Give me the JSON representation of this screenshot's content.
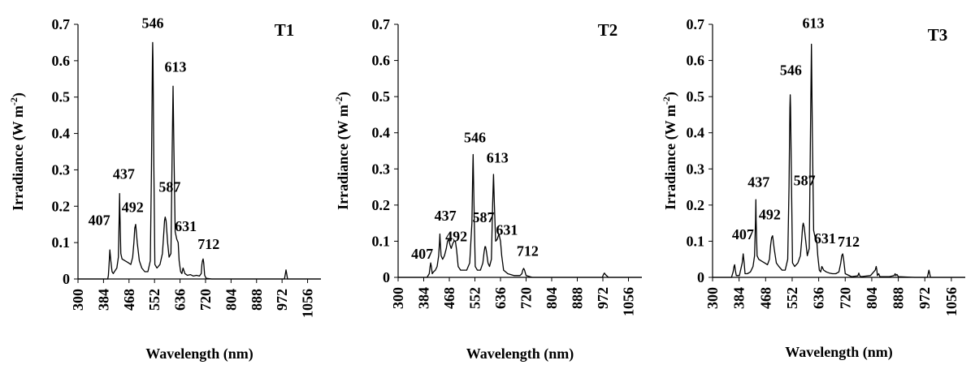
{
  "chart_data": [
    {
      "type": "line",
      "panel_label": "T1",
      "xlabel": "Wavelength (nm)",
      "ylabel": "Irradiance (W m-2)",
      "ylabel_main": "Irradiance (W m",
      "ylabel_sup": "-2",
      "ylabel_end": ")",
      "xlim": [
        300,
        1100
      ],
      "ylim": [
        0,
        0.7
      ],
      "x_ticks": [
        "300",
        "384",
        "468",
        "552",
        "636",
        "720",
        "804",
        "888",
        "972",
        "1056"
      ],
      "y_ticks": [
        "0",
        "0.1",
        "0.2",
        "0.3",
        "0.4",
        "0.5",
        "0.6",
        "0.7"
      ],
      "series": [
        {
          "name": "T1",
          "x": [
            300,
            340,
            365,
            378,
            388,
            398,
            400,
            403,
            405,
            408,
            412,
            416,
            420,
            428,
            433,
            436,
            437,
            438,
            441,
            445,
            455,
            465,
            474,
            480,
            484,
            487,
            490,
            495,
            502,
            510,
            520,
            530,
            538,
            542,
            545,
            546,
            547,
            550,
            553,
            560,
            570,
            578,
            582,
            585,
            587,
            590,
            595,
            600,
            606,
            610,
            613,
            616,
            620,
            625,
            630,
            633,
            638,
            642,
            646,
            652,
            660,
            670,
            680,
            690,
            700,
            706,
            708,
            710,
            712,
            714,
            717,
            722,
            740,
            760,
            790,
            820,
            860,
            900,
            940,
            970,
            980,
            983,
            985,
            987,
            990,
            1010,
            1040,
            1060,
            1100
          ],
          "y": [
            0,
            0,
            0,
            0,
            0,
            0,
            0.01,
            0.05,
            0.08,
            0.05,
            0.02,
            0.015,
            0.02,
            0.03,
            0.06,
            0.18,
            0.235,
            0.18,
            0.07,
            0.055,
            0.05,
            0.045,
            0.04,
            0.06,
            0.1,
            0.14,
            0.15,
            0.1,
            0.05,
            0.03,
            0.02,
            0.02,
            0.05,
            0.3,
            0.6,
            0.65,
            0.6,
            0.3,
            0.04,
            0.03,
            0.04,
            0.07,
            0.12,
            0.16,
            0.17,
            0.16,
            0.1,
            0.06,
            0.07,
            0.35,
            0.53,
            0.35,
            0.13,
            0.11,
            0.1,
            0.05,
            0.02,
            0.015,
            0.03,
            0.015,
            0.01,
            0.012,
            0.008,
            0.01,
            0.008,
            0.015,
            0.04,
            0.05,
            0.055,
            0.045,
            0.01,
            0.002,
            0,
            0,
            0,
            0,
            0,
            0,
            0,
            0,
            0,
            0.015,
            0.025,
            0.015,
            0,
            0,
            0,
            0,
            0
          ]
        }
      ],
      "annotations": [
        {
          "text": "546",
          "x": 546,
          "y": 0.69
        },
        {
          "text": "613",
          "x": 621,
          "y": 0.57
        },
        {
          "text": "587",
          "x": 602,
          "y": 0.24
        },
        {
          "text": "437",
          "x": 451,
          "y": 0.275
        },
        {
          "text": "492",
          "x": 480,
          "y": 0.184
        },
        {
          "text": "407",
          "x": 370,
          "y": 0.148
        },
        {
          "text": "631",
          "x": 655,
          "y": 0.132
        },
        {
          "text": "712",
          "x": 730,
          "y": 0.082
        }
      ]
    },
    {
      "type": "line",
      "panel_label": "T2",
      "xlabel": "Wavelength (nm)",
      "ylabel": "Irradiance (W m-2)",
      "ylabel_main": "Irradiance (W m",
      "ylabel_sup": "-2",
      "ylabel_end": ")",
      "xlim": [
        300,
        1100
      ],
      "ylim": [
        0,
        0.7
      ],
      "x_ticks": [
        "300",
        "384",
        "468",
        "552",
        "636",
        "720",
        "804",
        "888",
        "972",
        "1056"
      ],
      "y_ticks": [
        "0",
        "0.1",
        "0.2",
        "0.3",
        "0.4",
        "0.5",
        "0.6",
        "0.7"
      ],
      "series": [
        {
          "name": "T2",
          "x": [
            300,
            340,
            380,
            395,
            402,
            405,
            407,
            409,
            412,
            416,
            422,
            428,
            433,
            436,
            437,
            438,
            441,
            446,
            452,
            458,
            462,
            466,
            470,
            474,
            480,
            484,
            488,
            492,
            497,
            505,
            515,
            525,
            535,
            542,
            545,
            546,
            547,
            550,
            553,
            560,
            570,
            578,
            582,
            585,
            587,
            590,
            595,
            600,
            606,
            610,
            613,
            616,
            620,
            625,
            631,
            636,
            640,
            646,
            660,
            680,
            700,
            706,
            709,
            712,
            715,
            720,
            740,
            800,
            900,
            960,
            970,
            974,
            977,
            980,
            990,
            1040,
            1100
          ],
          "y": [
            0,
            0,
            0,
            0,
            0.01,
            0.03,
            0.04,
            0.03,
            0.01,
            0.015,
            0.02,
            0.03,
            0.06,
            0.1,
            0.12,
            0.1,
            0.06,
            0.05,
            0.06,
            0.08,
            0.1,
            0.105,
            0.09,
            0.08,
            0.095,
            0.1,
            0.1,
            0.075,
            0.03,
            0.02,
            0.02,
            0.02,
            0.04,
            0.15,
            0.3,
            0.34,
            0.3,
            0.15,
            0.03,
            0.02,
            0.02,
            0.04,
            0.07,
            0.085,
            0.085,
            0.07,
            0.04,
            0.03,
            0.05,
            0.2,
            0.285,
            0.2,
            0.1,
            0.105,
            0.12,
            0.1,
            0.06,
            0.02,
            0.01,
            0.005,
            0.005,
            0.01,
            0.02,
            0.025,
            0.02,
            0.005,
            0,
            0,
            0,
            0,
            0,
            0.008,
            0.012,
            0.008,
            0,
            0,
            0
          ]
        }
      ],
      "annotations": [
        {
          "text": "546",
          "x": 552,
          "y": 0.373
        },
        {
          "text": "613",
          "x": 626,
          "y": 0.317
        },
        {
          "text": "587",
          "x": 580,
          "y": 0.153
        },
        {
          "text": "437",
          "x": 455,
          "y": 0.157
        },
        {
          "text": "492",
          "x": 491,
          "y": 0.1
        },
        {
          "text": "407",
          "x": 379,
          "y": 0.052
        },
        {
          "text": "631",
          "x": 657,
          "y": 0.118
        },
        {
          "text": "712",
          "x": 725,
          "y": 0.06
        }
      ]
    },
    {
      "type": "line",
      "panel_label": "T3",
      "xlabel": "Wavelength (nm)",
      "ylabel": "Irradiance (W m-2)",
      "ylabel_main": "Irradiance (W m",
      "ylabel_sup": "-2",
      "ylabel_end": ")",
      "xlim": [
        300,
        1100
      ],
      "ylim": [
        0,
        0.7
      ],
      "x_ticks": [
        "300",
        "384",
        "468",
        "552",
        "636",
        "720",
        "804",
        "888",
        "972",
        "1056"
      ],
      "y_ticks": [
        "0",
        "0.1",
        "0.2",
        "0.3",
        "0.4",
        "0.5",
        "0.6",
        "0.7"
      ],
      "series": [
        {
          "name": "T3",
          "x": [
            300,
            340,
            360,
            365,
            368,
            370,
            372,
            375,
            385,
            394,
            397,
            400,
            403,
            410,
            420,
            428,
            433,
            436,
            437,
            438,
            441,
            446,
            455,
            465,
            474,
            480,
            484,
            487,
            490,
            495,
            502,
            510,
            520,
            530,
            538,
            542,
            545,
            546,
            547,
            550,
            553,
            560,
            570,
            578,
            582,
            585,
            587,
            590,
            595,
            600,
            606,
            610,
            613,
            616,
            620,
            625,
            630,
            633,
            638,
            642,
            646,
            652,
            660,
            670,
            680,
            690,
            700,
            706,
            709,
            712,
            715,
            720,
            740,
            760,
            763,
            766,
            770,
            800,
            815,
            818,
            820,
            822,
            826,
            830,
            860,
            875,
            878,
            880,
            884,
            888,
            940,
            970,
            980,
            983,
            985,
            987,
            990,
            1040,
            1100
          ],
          "y": [
            0,
            0,
            0,
            0.015,
            0.03,
            0.035,
            0.02,
            0.005,
            0.005,
            0.04,
            0.065,
            0.04,
            0.01,
            0.01,
            0.015,
            0.03,
            0.06,
            0.16,
            0.215,
            0.16,
            0.06,
            0.05,
            0.045,
            0.04,
            0.035,
            0.05,
            0.09,
            0.11,
            0.115,
            0.08,
            0.04,
            0.03,
            0.02,
            0.02,
            0.05,
            0.25,
            0.47,
            0.505,
            0.47,
            0.25,
            0.04,
            0.03,
            0.04,
            0.06,
            0.1,
            0.14,
            0.15,
            0.14,
            0.1,
            0.06,
            0.08,
            0.4,
            0.645,
            0.4,
            0.13,
            0.11,
            0.1,
            0.06,
            0.02,
            0.015,
            0.03,
            0.02,
            0.015,
            0.012,
            0.01,
            0.01,
            0.015,
            0.04,
            0.06,
            0.065,
            0.05,
            0.01,
            0.002,
            0.004,
            0.012,
            0.004,
            0.002,
            0.005,
            0.02,
            0.03,
            0.02,
            0.005,
            0.01,
            0.002,
            0.002,
            0.005,
            0.01,
            0.005,
            0.008,
            0.002,
            0,
            0,
            0,
            0.012,
            0.02,
            0.012,
            0,
            0,
            0
          ]
        }
      ],
      "annotations": [
        {
          "text": "546",
          "x": 548,
          "y": 0.56
        },
        {
          "text": "613",
          "x": 619,
          "y": 0.69
        },
        {
          "text": "587",
          "x": 591,
          "y": 0.255
        },
        {
          "text": "437",
          "x": 446,
          "y": 0.25
        },
        {
          "text": "492",
          "x": 481,
          "y": 0.16
        },
        {
          "text": "407",
          "x": 396,
          "y": 0.105
        },
        {
          "text": "631",
          "x": 656,
          "y": 0.094
        },
        {
          "text": "712",
          "x": 731,
          "y": 0.085
        }
      ]
    }
  ]
}
